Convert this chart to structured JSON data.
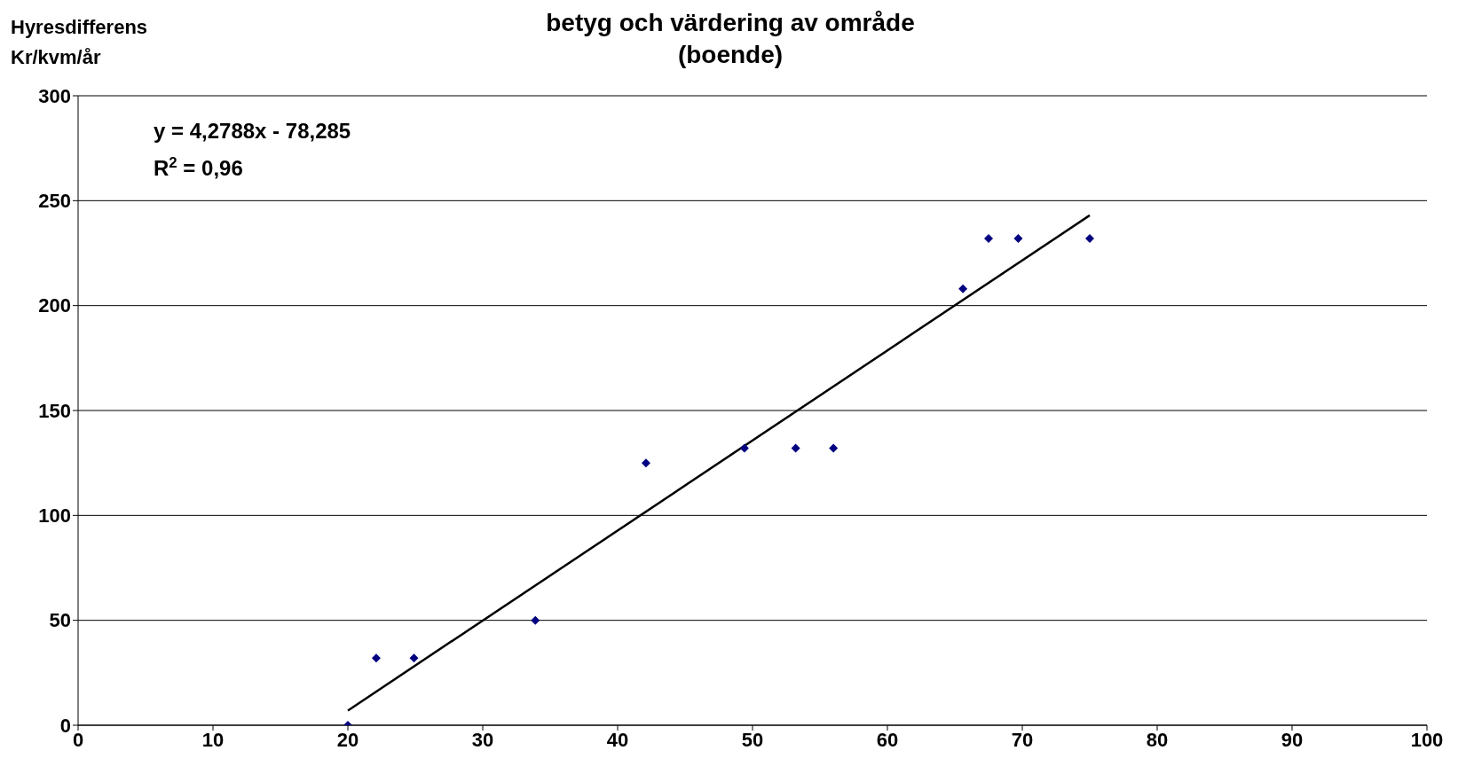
{
  "chart_data": {
    "type": "scatter",
    "title": "betyg och värdering av område\n(boende)",
    "ylabel": "Hyresdifferens\nKr/kvm/år",
    "annotations": [
      "y = 4,2788x - 78,285",
      "R$^{2}$ = 0,96"
    ],
    "series": [
      {
        "color": "#000080",
        "marker": "diamond",
        "x": [
          20.0,
          22.1,
          24.9,
          33.9,
          42.1,
          49.4,
          53.2,
          56.0,
          65.6,
          67.5,
          69.7,
          75.0
        ],
        "values": [
          0,
          32,
          32,
          50,
          125,
          132,
          132,
          132,
          208,
          232,
          232,
          232
        ]
      },
      {
        "type": "line",
        "color": "#000000",
        "marker": "none",
        "line_style": "solid",
        "x": [
          20,
          75
        ],
        "values": [
          7,
          243
        ]
      }
    ],
    "xlim": [
      0,
      100
    ],
    "xticks": [
      0,
      10,
      20,
      30,
      40,
      50,
      60,
      70,
      80,
      90,
      100
    ],
    "ylim": [
      0,
      300
    ],
    "yticks": [
      0,
      50,
      100,
      150,
      200,
      250,
      300
    ],
    "grid": "y"
  }
}
